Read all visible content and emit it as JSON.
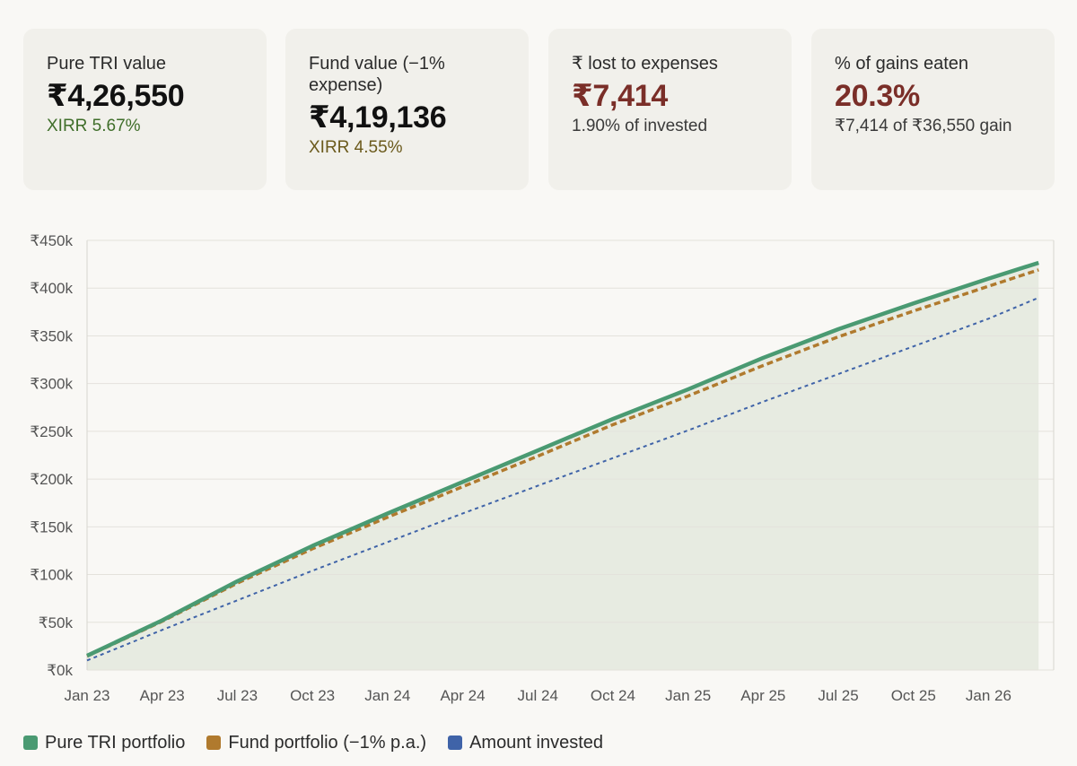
{
  "cards": [
    {
      "label": "Pure TRI value",
      "value": "₹4,26,550",
      "sub": "XIRR 5.67%"
    },
    {
      "label": "Fund value (−1% expense)",
      "value": "₹4,19,136",
      "sub": "XIRR 4.55%"
    },
    {
      "label": "₹ lost to expenses",
      "value": "₹7,414",
      "sub": "1.90% of invested"
    },
    {
      "label": "% of gains eaten",
      "value": "20.3%",
      "sub": "₹7,414 of ₹36,550 gain"
    }
  ],
  "colors": {
    "tri": "#4a9a72",
    "fund": "#b07a2e",
    "invested": "#3f63a8",
    "fill": "#e7ebe1",
    "grid": "#e4e2dc"
  },
  "chart_data": {
    "type": "line",
    "ylim": [
      0,
      450000
    ],
    "yticks": [
      0,
      50000,
      100000,
      150000,
      200000,
      250000,
      300000,
      350000,
      400000,
      450000
    ],
    "ytick_labels": [
      "₹0k",
      "₹50k",
      "₹100k",
      "₹150k",
      "₹200k",
      "₹250k",
      "₹300k",
      "₹350k",
      "₹400k",
      "₹450k"
    ],
    "xtick_labels": [
      "Jan 23",
      "Apr 23",
      "Jul 23",
      "Oct 23",
      "Jan 24",
      "Apr 24",
      "Jul 24",
      "Oct 24",
      "Jan 25",
      "Apr 25",
      "Jul 25",
      "Oct 25",
      "Jan 26"
    ],
    "x_months": [
      0,
      3,
      6,
      9,
      12,
      15,
      18,
      21,
      24,
      27,
      30,
      33,
      36,
      38
    ],
    "series": [
      {
        "name": "Pure TRI portfolio",
        "key": "tri",
        "style": "solid",
        "values": [
          15000,
          52000,
          93000,
          130000,
          164000,
          197000,
          230000,
          263000,
          294000,
          327000,
          357000,
          384000,
          410000,
          426550
        ]
      },
      {
        "name": "Fund portfolio (−1% p.a.)",
        "key": "fund",
        "style": "dashed",
        "values": [
          14500,
          51000,
          91000,
          127000,
          160000,
          192000,
          224000,
          257000,
          287000,
          319000,
          349000,
          376000,
          402000,
          419136
        ]
      },
      {
        "name": "Amount invested",
        "key": "invested",
        "style": "dotted",
        "values": [
          10000,
          42000,
          73000,
          104000,
          134000,
          164000,
          193000,
          222000,
          251000,
          281000,
          310000,
          339000,
          368000,
          390000
        ]
      }
    ],
    "fill_under": "tri",
    "legend_position": "bottom-left"
  },
  "legend": [
    {
      "label": "Pure TRI portfolio",
      "key": "tri"
    },
    {
      "label": "Fund portfolio (−1% p.a.)",
      "key": "fund"
    },
    {
      "label": "Amount invested",
      "key": "invested"
    }
  ]
}
